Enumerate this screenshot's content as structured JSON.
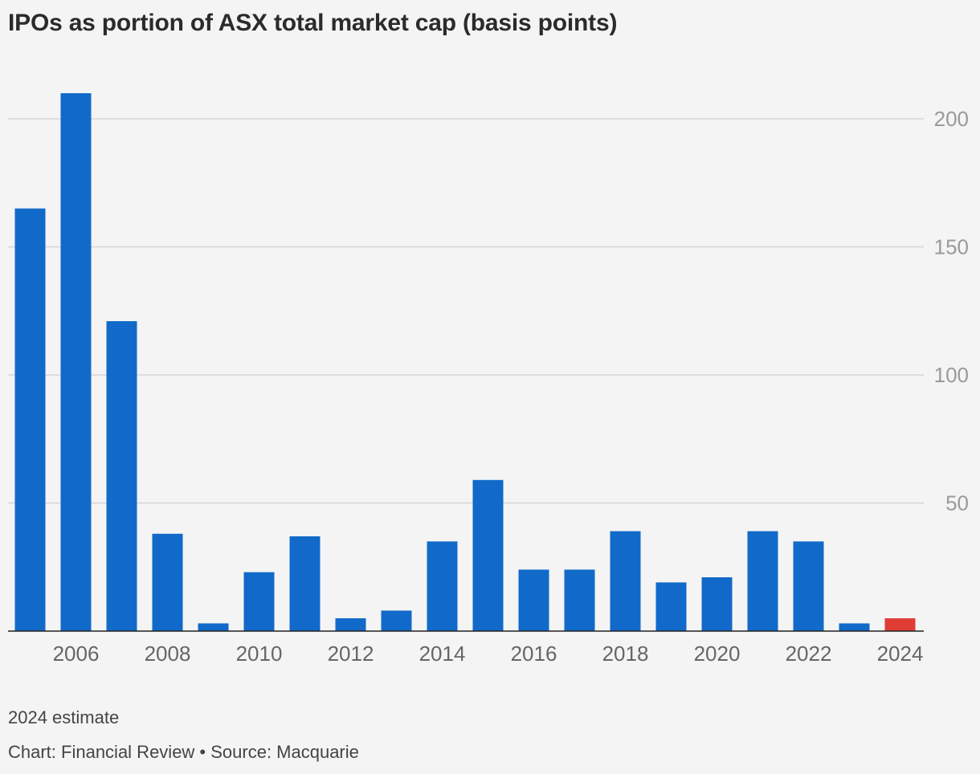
{
  "chart_data": {
    "type": "bar",
    "title": "IPOs as portion of ASX total market cap (basis points)",
    "xlabel": "",
    "ylabel": "",
    "categories": [
      "2005",
      "2006",
      "2007",
      "2008",
      "2009",
      "2010",
      "2011",
      "2012",
      "2013",
      "2014",
      "2015",
      "2016",
      "2017",
      "2018",
      "2019",
      "2020",
      "2021",
      "2022",
      "2023",
      "2024"
    ],
    "values": [
      165,
      210,
      121,
      38,
      3,
      23,
      37,
      5,
      8,
      35,
      59,
      24,
      24,
      39,
      19,
      21,
      39,
      35,
      3,
      5
    ],
    "highlight_index": 19,
    "ylim": [
      0,
      220
    ],
    "yticks": [
      50,
      100,
      150,
      200
    ],
    "xtick_labels": [
      "2006",
      "2008",
      "2010",
      "2012",
      "2014",
      "2016",
      "2018",
      "2020",
      "2022",
      "2024"
    ],
    "colors": {
      "bar": "#116ac9",
      "highlight": "#e03c36"
    },
    "grid": true
  },
  "footnote": "2024 estimate",
  "credit": "Chart: Financial Review • Source: Macquarie"
}
